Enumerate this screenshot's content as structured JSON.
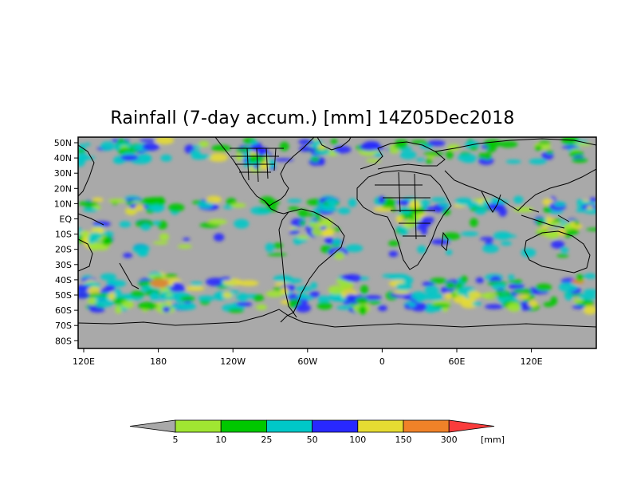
{
  "title": "Rainfall (7-day accum.) [mm] 14Z05Dec2018",
  "map": {
    "lat_labels": [
      "50N",
      "40N",
      "30N",
      "20N",
      "10N",
      "EQ",
      "10S",
      "20S",
      "30S",
      "40S",
      "50S",
      "60S",
      "70S",
      "80S"
    ],
    "lon_labels": [
      "120E",
      "180",
      "120W",
      "60W",
      "0",
      "60E",
      "120E"
    ],
    "no_rain_color": "#a9a9a9",
    "coastline_color": "#000000"
  },
  "colorbar": {
    "colors": [
      "#a9a9a9",
      "#a0e632",
      "#00c800",
      "#00c8c8",
      "#2828ff",
      "#e6dc32",
      "#f08228",
      "#fa3c3c"
    ],
    "labels": [
      "5",
      "10",
      "25",
      "50",
      "100",
      "150",
      "300"
    ],
    "unit": "[mm]"
  }
}
